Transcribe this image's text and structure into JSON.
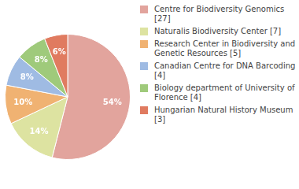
{
  "chart_data": {
    "type": "pie",
    "categories": [
      "Centre for Biodiversity Genomics [27]",
      "Naturalis Biodiversity Center [7]",
      "Research Center in Biodiversity and Genetic Resources [5]",
      "Canadian Centre for DNA Barcoding [4]",
      "Biology department of University of Florence [4]",
      "Hungarian Natural History Museum [3]"
    ],
    "values": [
      54,
      14,
      10,
      8,
      8,
      6
    ],
    "value_labels": [
      "54%",
      "14%",
      "10%",
      "8%",
      "8%",
      "6%"
    ],
    "colors": [
      "#e2a49d",
      "#dde3a1",
      "#f0b272",
      "#9fbbe3",
      "#9fca7b",
      "#e07b60"
    ],
    "data_labels": true,
    "legend": "right"
  }
}
